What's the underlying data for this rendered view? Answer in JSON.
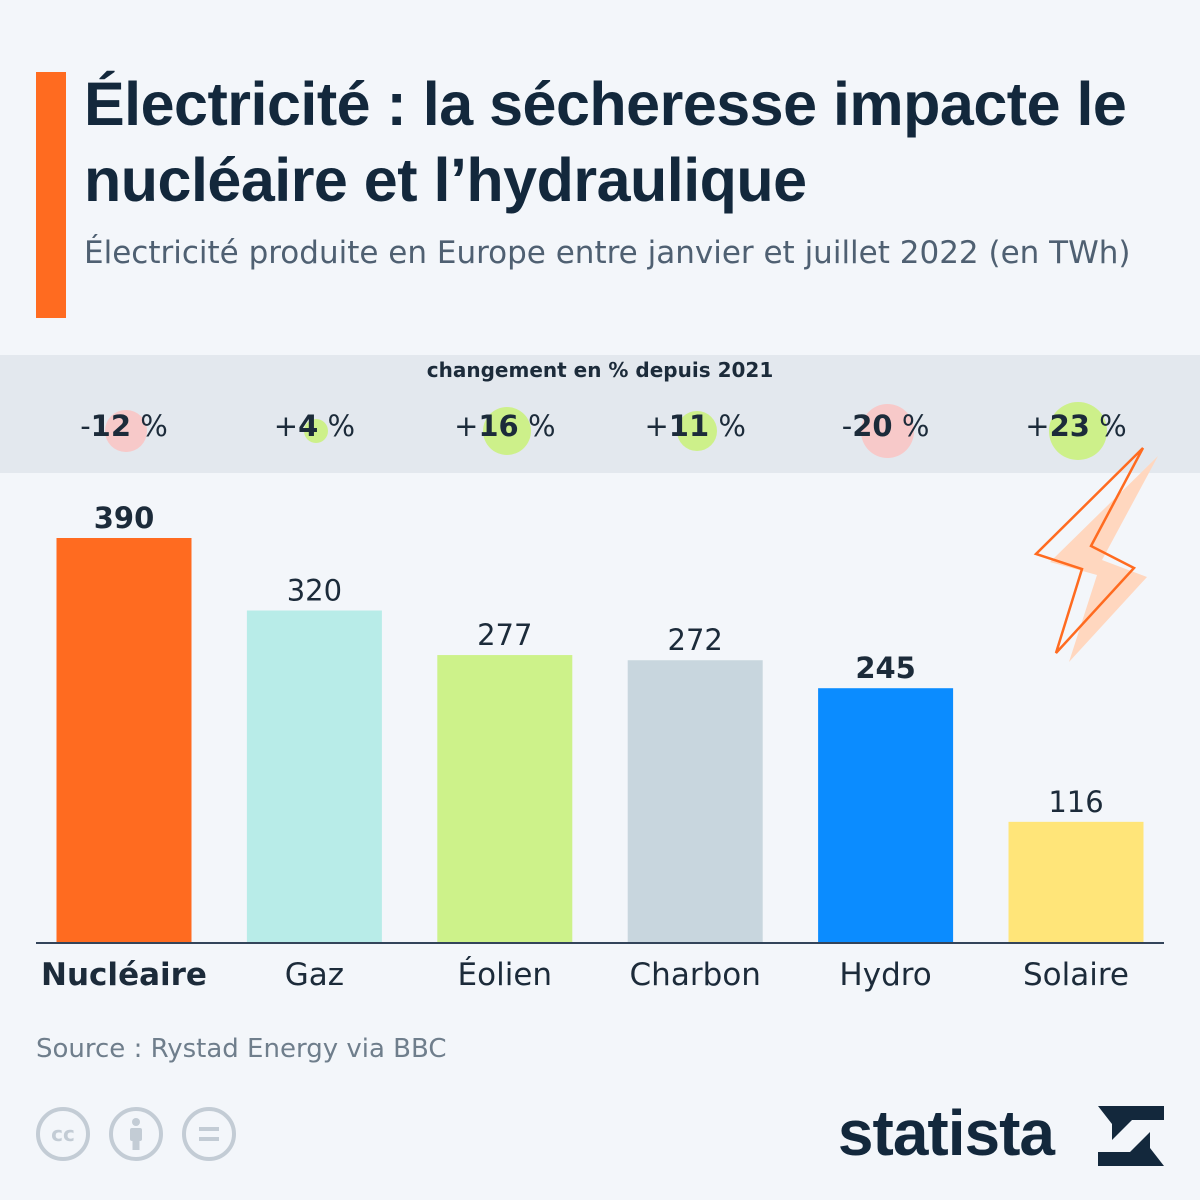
{
  "title": "Électricité : la sécheresse impacte le nucléaire et l’hydraulique",
  "subtitle": "Électricité produite en Europe entre janvier et juillet 2022 (en TWh)",
  "change": {
    "header": "changement en % depuis 2021",
    "items": [
      {
        "category": "Nucléaire",
        "sign": "-",
        "number": "12",
        "unit": " %",
        "value": -12
      },
      {
        "category": "Gaz",
        "sign": "+",
        "number": "4",
        "unit": " %",
        "value": 4
      },
      {
        "category": "Éolien",
        "sign": "+",
        "number": "16",
        "unit": " %",
        "value": 16
      },
      {
        "category": "Charbon",
        "sign": "+",
        "number": "11",
        "unit": " %",
        "value": 11
      },
      {
        "category": "Hydro",
        "sign": "-",
        "number": "20",
        "unit": " %",
        "value": -20
      },
      {
        "category": "Solaire",
        "sign": "+",
        "number": "23",
        "unit": " %",
        "value": 23
      }
    ],
    "colors": {
      "negative": "#f7c9c9",
      "positive": "#cdf08a"
    }
  },
  "chart_data": {
    "type": "bar",
    "categories": [
      "Nucléaire",
      "Gaz",
      "Éolien",
      "Charbon",
      "Hydro",
      "Solaire"
    ],
    "values": [
      390,
      320,
      277,
      272,
      245,
      116
    ],
    "colors": [
      "#ff6b20",
      "#b8ece8",
      "#cdf28a",
      "#c8d6de",
      "#0b8cff",
      "#ffe579"
    ],
    "highlighted": [
      "Nucléaire",
      "Hydro"
    ],
    "ylim": [
      0,
      390
    ],
    "grid": false
  },
  "source": "Source : Rystad Energy via BBC",
  "license_icons": [
    "creative-commons-icon",
    "attribution-icon",
    "no-derivatives-icon"
  ],
  "brand": {
    "name": "statista"
  },
  "decoration": {
    "lightning": "lightning-bolt-icon"
  }
}
